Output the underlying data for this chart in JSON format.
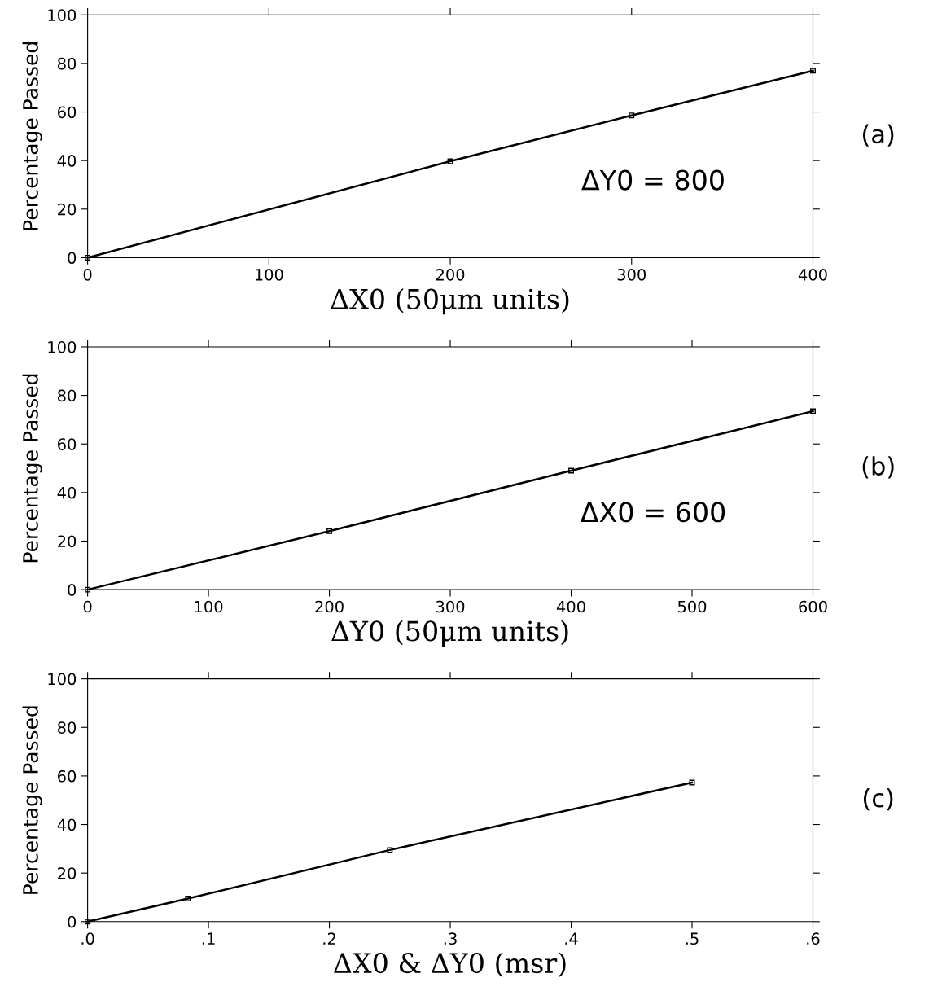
{
  "chart_data": [
    {
      "type": "line",
      "xlabel": "ΔX0 (50μm units)",
      "ylabel": "Percentage Passed",
      "x": [
        0,
        200,
        300,
        400
      ],
      "series": [
        {
          "color": "#000000",
          "values": [
            0,
            39.7,
            58.6,
            77
          ]
        }
      ],
      "xlim": [
        0,
        400
      ],
      "ylim": [
        0,
        100
      ],
      "xticks": [
        0,
        100,
        200,
        300,
        400
      ],
      "yticks": [
        0,
        20,
        40,
        60,
        80,
        100
      ],
      "marker": "square",
      "line_style": "solid",
      "grid": false,
      "annotations": [
        "ΔY0 = 800",
        "(a)"
      ]
    },
    {
      "type": "line",
      "xlabel": "ΔY0 (50μm units)",
      "ylabel": "Percentage Passed",
      "x": [
        0,
        200,
        400,
        600
      ],
      "series": [
        {
          "color": "#000000",
          "values": [
            0,
            24.1,
            49,
            73.5
          ]
        }
      ],
      "xlim": [
        0,
        600
      ],
      "ylim": [
        0,
        100
      ],
      "xticks": [
        0,
        100,
        200,
        300,
        400,
        500,
        600
      ],
      "yticks": [
        0,
        20,
        40,
        60,
        80,
        100
      ],
      "marker": "square",
      "line_style": "solid",
      "grid": false,
      "annotations": [
        "ΔX0 = 600",
        "(b)"
      ]
    },
    {
      "type": "line",
      "xlabel": "ΔX0 & ΔY0 (msr)",
      "ylabel": "Percentage Passed",
      "x": [
        0,
        0.083,
        0.25,
        0.5
      ],
      "series": [
        {
          "color": "#000000",
          "values": [
            0,
            9.5,
            29.5,
            57.3
          ]
        }
      ],
      "xlim": [
        0,
        0.6
      ],
      "ylim": [
        0,
        100
      ],
      "xticks": [
        {
          "value": 0,
          "label": ".0"
        },
        {
          "value": 0.1,
          "label": ".1"
        },
        {
          "value": 0.2,
          "label": ".2"
        },
        {
          "value": 0.3,
          "label": ".3"
        },
        {
          "value": 0.4,
          "label": ".4"
        },
        {
          "value": 0.5,
          "label": ".5"
        },
        {
          "value": 0.6,
          "label": ".6"
        }
      ],
      "yticks": [
        0,
        20,
        40,
        60,
        80,
        100
      ],
      "marker": "square",
      "line_style": "solid",
      "grid": false,
      "annotations": [
        "(c)"
      ]
    }
  ]
}
